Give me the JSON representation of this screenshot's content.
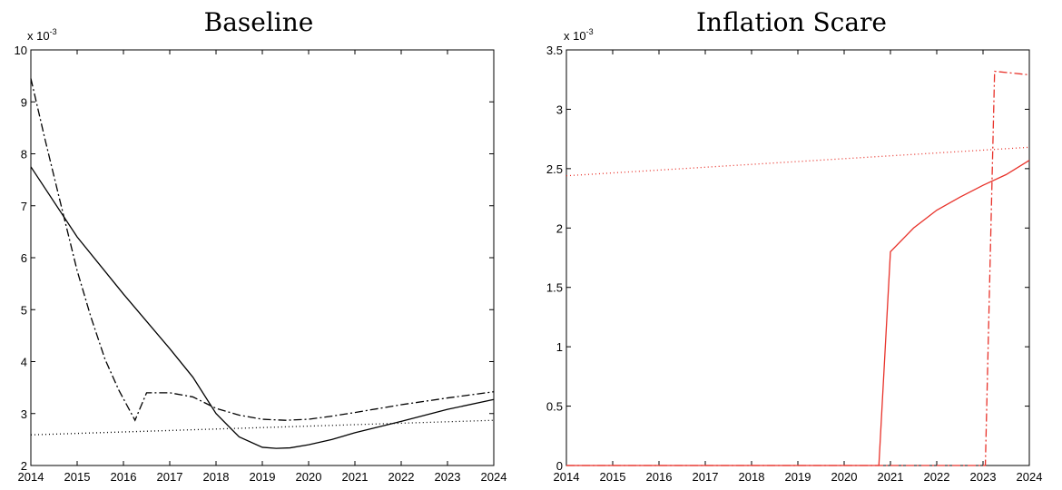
{
  "chart_data": [
    {
      "type": "line",
      "title": "Baseline",
      "xlabel": "",
      "ylabel": "",
      "xlim": [
        2014,
        2024
      ],
      "ylim": [
        2,
        10
      ],
      "y_scale_label": "x 10",
      "y_scale_exponent": "-3",
      "x_ticks": [
        "2014",
        "2015",
        "2016",
        "2017",
        "2018",
        "2019",
        "2020",
        "2021",
        "2022",
        "2023",
        "2024"
      ],
      "y_ticks": [
        "2",
        "3",
        "4",
        "5",
        "6",
        "7",
        "8",
        "9",
        "10"
      ],
      "grid": false,
      "legend": "none",
      "series": [
        {
          "style": "solid",
          "color": "#000000",
          "points": [
            [
              2014,
              7.75
            ],
            [
              2015,
              6.4
            ],
            [
              2016,
              5.3
            ],
            [
              2017,
              4.25
            ],
            [
              2017.5,
              3.7
            ],
            [
              2018,
              3.0
            ],
            [
              2018.5,
              2.55
            ],
            [
              2019,
              2.35
            ],
            [
              2019.3,
              2.33
            ],
            [
              2019.6,
              2.34
            ],
            [
              2020,
              2.4
            ],
            [
              2020.5,
              2.5
            ],
            [
              2021,
              2.63
            ],
            [
              2022,
              2.85
            ],
            [
              2023,
              3.08
            ],
            [
              2024,
              3.27
            ]
          ]
        },
        {
          "style": "dashdot",
          "color": "#000000",
          "points": [
            [
              2014,
              9.45
            ],
            [
              2014.3,
              8.3
            ],
            [
              2014.6,
              7.2
            ],
            [
              2015,
              5.75
            ],
            [
              2015.3,
              4.85
            ],
            [
              2015.6,
              4.05
            ],
            [
              2015.9,
              3.45
            ],
            [
              2016.25,
              2.87
            ],
            [
              2016.5,
              3.4
            ],
            [
              2017,
              3.4
            ],
            [
              2017.5,
              3.32
            ],
            [
              2018,
              3.1
            ],
            [
              2018.5,
              2.97
            ],
            [
              2019,
              2.89
            ],
            [
              2019.5,
              2.87
            ],
            [
              2020,
              2.89
            ],
            [
              2020.5,
              2.95
            ],
            [
              2021,
              3.02
            ],
            [
              2022,
              3.17
            ],
            [
              2023,
              3.3
            ],
            [
              2024,
              3.42
            ]
          ]
        },
        {
          "style": "dotted",
          "color": "#000000",
          "points": [
            [
              2014,
              2.59
            ],
            [
              2024,
              2.87
            ]
          ]
        }
      ]
    },
    {
      "type": "line",
      "title": "Inflation Scare",
      "xlabel": "",
      "ylabel": "",
      "xlim": [
        2014,
        2024
      ],
      "ylim": [
        0,
        3.5
      ],
      "y_scale_label": "x 10",
      "y_scale_exponent": "-3",
      "x_ticks": [
        "2014",
        "2015",
        "2016",
        "2017",
        "2018",
        "2019",
        "2020",
        "2021",
        "2022",
        "2023",
        "2024"
      ],
      "y_ticks": [
        "0",
        "0.5",
        "1",
        "1.5",
        "2",
        "2.5",
        "3",
        "3.5"
      ],
      "grid": false,
      "legend": "none",
      "series": [
        {
          "style": "solid",
          "color": "#e8322a",
          "points": [
            [
              2014,
              0
            ],
            [
              2020.75,
              0
            ],
            [
              2021,
              1.8
            ],
            [
              2021.5,
              2.0
            ],
            [
              2022,
              2.15
            ],
            [
              2022.5,
              2.26
            ],
            [
              2023,
              2.36
            ],
            [
              2023.5,
              2.45
            ],
            [
              2024,
              2.57
            ]
          ]
        },
        {
          "style": "dashdot",
          "color": "#e8322a",
          "points": [
            [
              2014,
              0
            ],
            [
              2023.05,
              0
            ],
            [
              2023.25,
              3.32
            ],
            [
              2024,
              3.29
            ]
          ]
        },
        {
          "style": "dotted",
          "color": "#e8322a",
          "points": [
            [
              2014,
              2.44
            ],
            [
              2024,
              2.68
            ]
          ]
        }
      ]
    }
  ]
}
